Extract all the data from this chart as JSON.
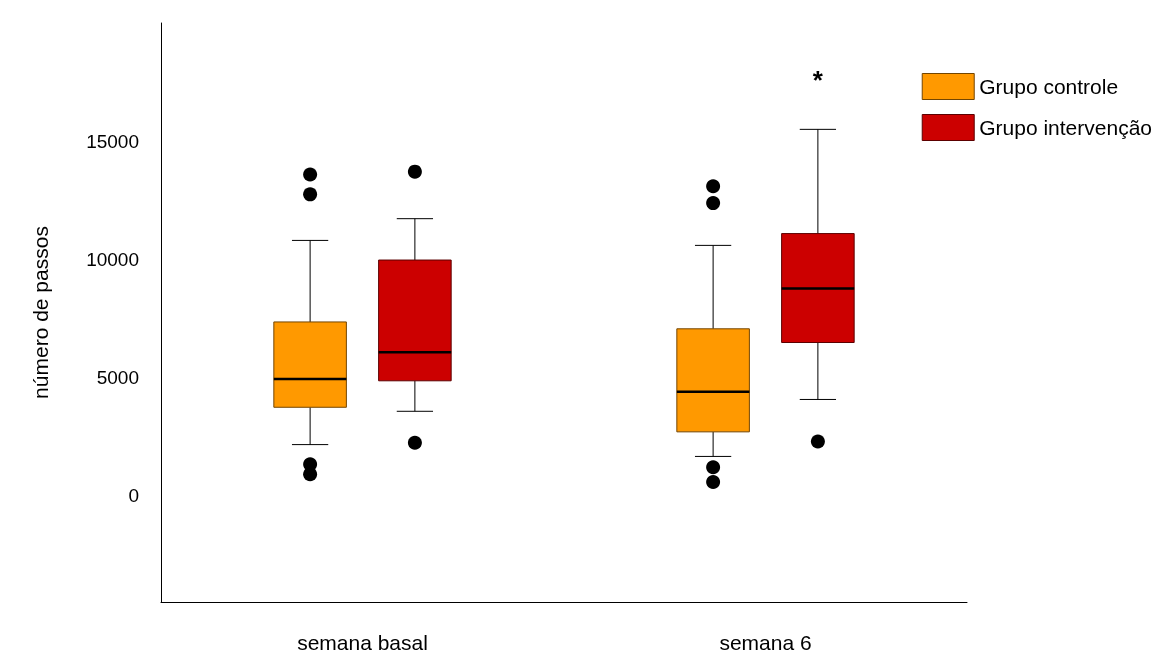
{
  "chart_data": {
    "type": "box",
    "ylabel": "número de passos",
    "categories": [
      "semana basal",
      "semana 6"
    ],
    "ylim": [
      -4500,
      20000
    ],
    "yticks": [
      0,
      5000,
      10000,
      15000
    ],
    "grid": false,
    "legend": "top right",
    "series": [
      {
        "name": "Grupo controle",
        "color": "#ff9900",
        "boxes": [
          {
            "low": 2160,
            "q1": 3740,
            "median": 4940,
            "q3": 7350,
            "high": 10800,
            "outliers": [
              13590,
              12750,
              1330,
              910
            ]
          },
          {
            "low": 1660,
            "q1": 2700,
            "median": 4400,
            "q3": 7060,
            "high": 10590,
            "outliers": [
              13090,
              12380,
              1200,
              580
            ]
          }
        ]
      },
      {
        "name": "Grupo intervenção",
        "color": "#cc0000",
        "boxes": [
          {
            "low": 3570,
            "q1": 4860,
            "median": 6070,
            "q3": 9970,
            "high": 11720,
            "outliers": [
              13710,
              2240
            ]
          },
          {
            "low": 4070,
            "q1": 6480,
            "median": 8770,
            "q3": 11090,
            "high": 15500,
            "outliers": [
              2290
            ]
          }
        ]
      }
    ],
    "annotations": [
      "*"
    ]
  }
}
